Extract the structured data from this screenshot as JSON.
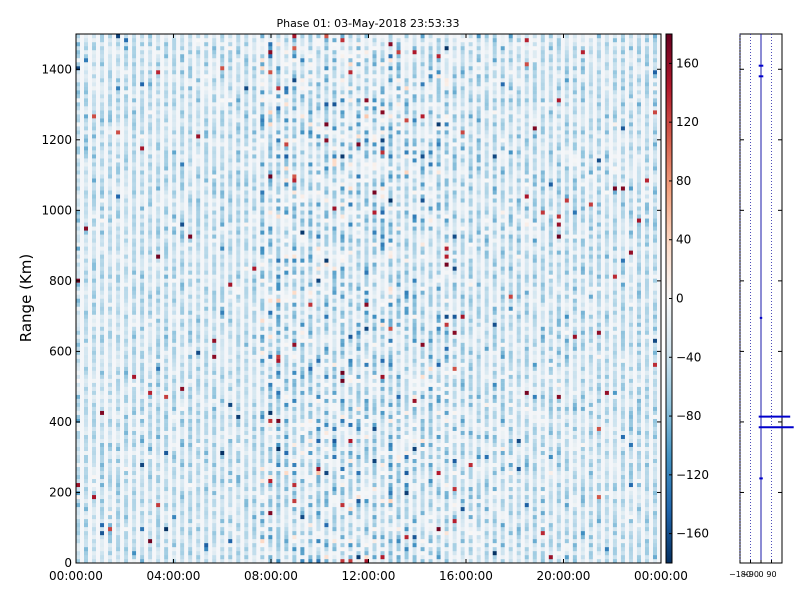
{
  "chart_data": [
    {
      "type": "heatmap",
      "title": "Phase 01: 03-May-2018 23:53:33",
      "xlabel": "",
      "ylabel": "Range (Km)",
      "x_ticks": [
        "00:00:00",
        "04:00:00",
        "08:00:00",
        "12:00:00",
        "16:00:00",
        "20:00:00",
        "00:00:00"
      ],
      "xlim_hours": [
        0,
        24
      ],
      "y_ticks": [
        0,
        200,
        400,
        600,
        800,
        1000,
        1200,
        1400
      ],
      "ylim": [
        0,
        1500
      ],
      "colormap": "RdBu_r",
      "color_range": [
        -180,
        180
      ],
      "colorbar_ticks": [
        -160,
        -120,
        -80,
        -40,
        0,
        40,
        80,
        120,
        160
      ],
      "color_stops": [
        "#053061",
        "#2166ac",
        "#4393c3",
        "#92c5de",
        "#d1e5f0",
        "#f7f7f7",
        "#fddbc7",
        "#f4a582",
        "#d6604d",
        "#b2182b",
        "#67001f"
      ],
      "grid": false
    },
    {
      "type": "line",
      "xlabel": "",
      "ylabel": "",
      "x_ticks": [
        -180,
        -90,
        0,
        90
      ],
      "xlim": [
        -180,
        180
      ],
      "ylim": [
        0,
        1500
      ],
      "grid": true,
      "series_color": "#0000cc",
      "segments": [
        {
          "x": [
            -20,
            20
          ],
          "y": [
            1410,
            1410
          ]
        },
        {
          "x": [
            -20,
            20
          ],
          "y": [
            1380,
            1380
          ]
        },
        {
          "x": [
            -10,
            10
          ],
          "y": [
            695,
            695
          ]
        },
        {
          "x": [
            -20,
            250
          ],
          "y": [
            415,
            415
          ]
        },
        {
          "x": [
            -20,
            280
          ],
          "y": [
            385,
            385
          ]
        },
        {
          "x": [
            -15,
            15
          ],
          "y": [
            240,
            240
          ]
        }
      ]
    }
  ]
}
